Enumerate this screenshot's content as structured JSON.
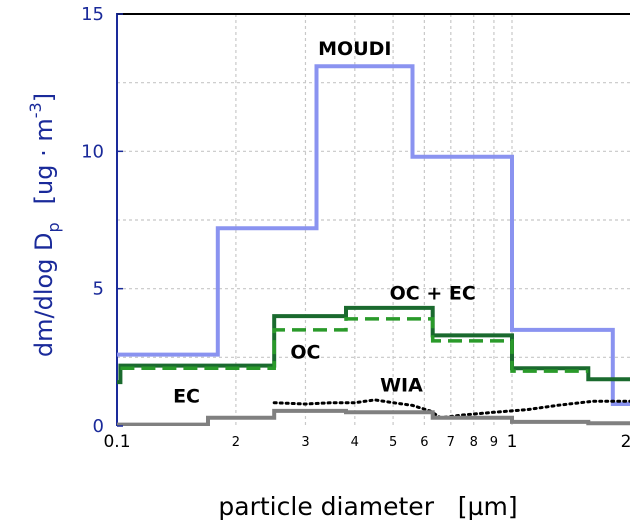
{
  "chart_data": {
    "type": "line",
    "subtype": "step",
    "xscale": "log",
    "xlim": [
      0.1,
      2
    ],
    "ylim": [
      0,
      15
    ],
    "xlabel": "particle diameter   [µm]",
    "ylabel_main": "dm/dlog D",
    "ylabel_sub": "p",
    "ylabel_units": "[ug · m",
    "ylabel_sup": "-3",
    "ylabel_close": "]",
    "y_ticks": [
      "0",
      "5",
      "10",
      "15"
    ],
    "y_tick_values": [
      0,
      5,
      10,
      15
    ],
    "x_major_ticks": [
      {
        "value": 0.1,
        "label": "0.1"
      },
      {
        "value": 1,
        "label": "1"
      },
      {
        "value": 2,
        "label": "2"
      }
    ],
    "x_minor_ticks": [
      {
        "value": 0.2,
        "label": "2"
      },
      {
        "value": 0.3,
        "label": "3"
      },
      {
        "value": 0.4,
        "label": "4"
      },
      {
        "value": 0.5,
        "label": "5"
      },
      {
        "value": 0.6,
        "label": "6"
      },
      {
        "value": 0.7,
        "label": "7"
      },
      {
        "value": 0.8,
        "label": "8"
      },
      {
        "value": 0.9,
        "label": "9"
      }
    ],
    "grid": true,
    "series": [
      {
        "name": "MOUDI",
        "color": "#8a93f0",
        "style": "solid",
        "points": [
          [
            0.1,
            2.6
          ],
          [
            0.18,
            2.6
          ],
          [
            0.18,
            7.2
          ],
          [
            0.32,
            7.2
          ],
          [
            0.32,
            13.1
          ],
          [
            0.56,
            13.1
          ],
          [
            0.56,
            9.8
          ],
          [
            1.0,
            9.8
          ],
          [
            1.0,
            3.5
          ],
          [
            1.8,
            3.5
          ],
          [
            1.8,
            0.8
          ],
          [
            2.0,
            0.8
          ]
        ]
      },
      {
        "name": "OC + EC",
        "color": "#1a6a2e",
        "style": "solid",
        "points": [
          [
            0.1,
            1.6
          ],
          [
            0.102,
            1.6
          ],
          [
            0.102,
            2.2
          ],
          [
            0.25,
            2.2
          ],
          [
            0.25,
            4.0
          ],
          [
            0.38,
            4.0
          ],
          [
            0.38,
            4.3
          ],
          [
            0.63,
            4.3
          ],
          [
            0.63,
            3.3
          ],
          [
            1.0,
            3.3
          ],
          [
            1.0,
            2.1
          ],
          [
            1.56,
            2.1
          ],
          [
            1.56,
            1.7
          ],
          [
            2.0,
            1.7
          ]
        ]
      },
      {
        "name": "OC",
        "color": "#2a9a2a",
        "style": "dashed",
        "points": [
          [
            0.102,
            2.1
          ],
          [
            0.25,
            2.1
          ],
          [
            0.25,
            3.5
          ],
          [
            0.38,
            3.5
          ],
          [
            0.38,
            3.9
          ],
          [
            0.63,
            3.9
          ],
          [
            0.63,
            3.1
          ],
          [
            1.0,
            3.1
          ],
          [
            1.0,
            2.0
          ],
          [
            1.56,
            2.0
          ]
        ]
      },
      {
        "name": "WIA",
        "color": "#000000",
        "style": "dotted",
        "points": [
          [
            0.25,
            0.85
          ],
          [
            0.3,
            0.8
          ],
          [
            0.35,
            0.85
          ],
          [
            0.4,
            0.85
          ],
          [
            0.45,
            0.95
          ],
          [
            0.5,
            0.85
          ],
          [
            0.56,
            0.75
          ],
          [
            0.62,
            0.55
          ],
          [
            0.66,
            0.3
          ],
          [
            0.75,
            0.4
          ],
          [
            0.9,
            0.5
          ],
          [
            1.1,
            0.6
          ],
          [
            1.3,
            0.75
          ],
          [
            1.6,
            0.9
          ],
          [
            1.9,
            0.9
          ],
          [
            2.0,
            0.9
          ]
        ]
      },
      {
        "name": "EC",
        "color": "#808080",
        "style": "solid",
        "points": [
          [
            0.1,
            0.05
          ],
          [
            0.17,
            0.05
          ],
          [
            0.17,
            0.3
          ],
          [
            0.25,
            0.3
          ],
          [
            0.25,
            0.55
          ],
          [
            0.38,
            0.55
          ],
          [
            0.38,
            0.5
          ],
          [
            0.63,
            0.5
          ],
          [
            0.63,
            0.3
          ],
          [
            1.0,
            0.3
          ],
          [
            1.0,
            0.15
          ],
          [
            1.56,
            0.15
          ],
          [
            1.56,
            0.1
          ],
          [
            2.0,
            0.1
          ]
        ]
      }
    ],
    "annotations": [
      {
        "text": "MOUDI",
        "x": 0.4,
        "y": 13.5
      },
      {
        "text": "OC + EC",
        "x": 0.63,
        "y": 4.6
      },
      {
        "text": "OC",
        "x": 0.3,
        "y": 2.45
      },
      {
        "text": "WIA",
        "x": 0.525,
        "y": 1.25
      },
      {
        "text": "EC",
        "x": 0.15,
        "y": 0.85
      }
    ]
  }
}
